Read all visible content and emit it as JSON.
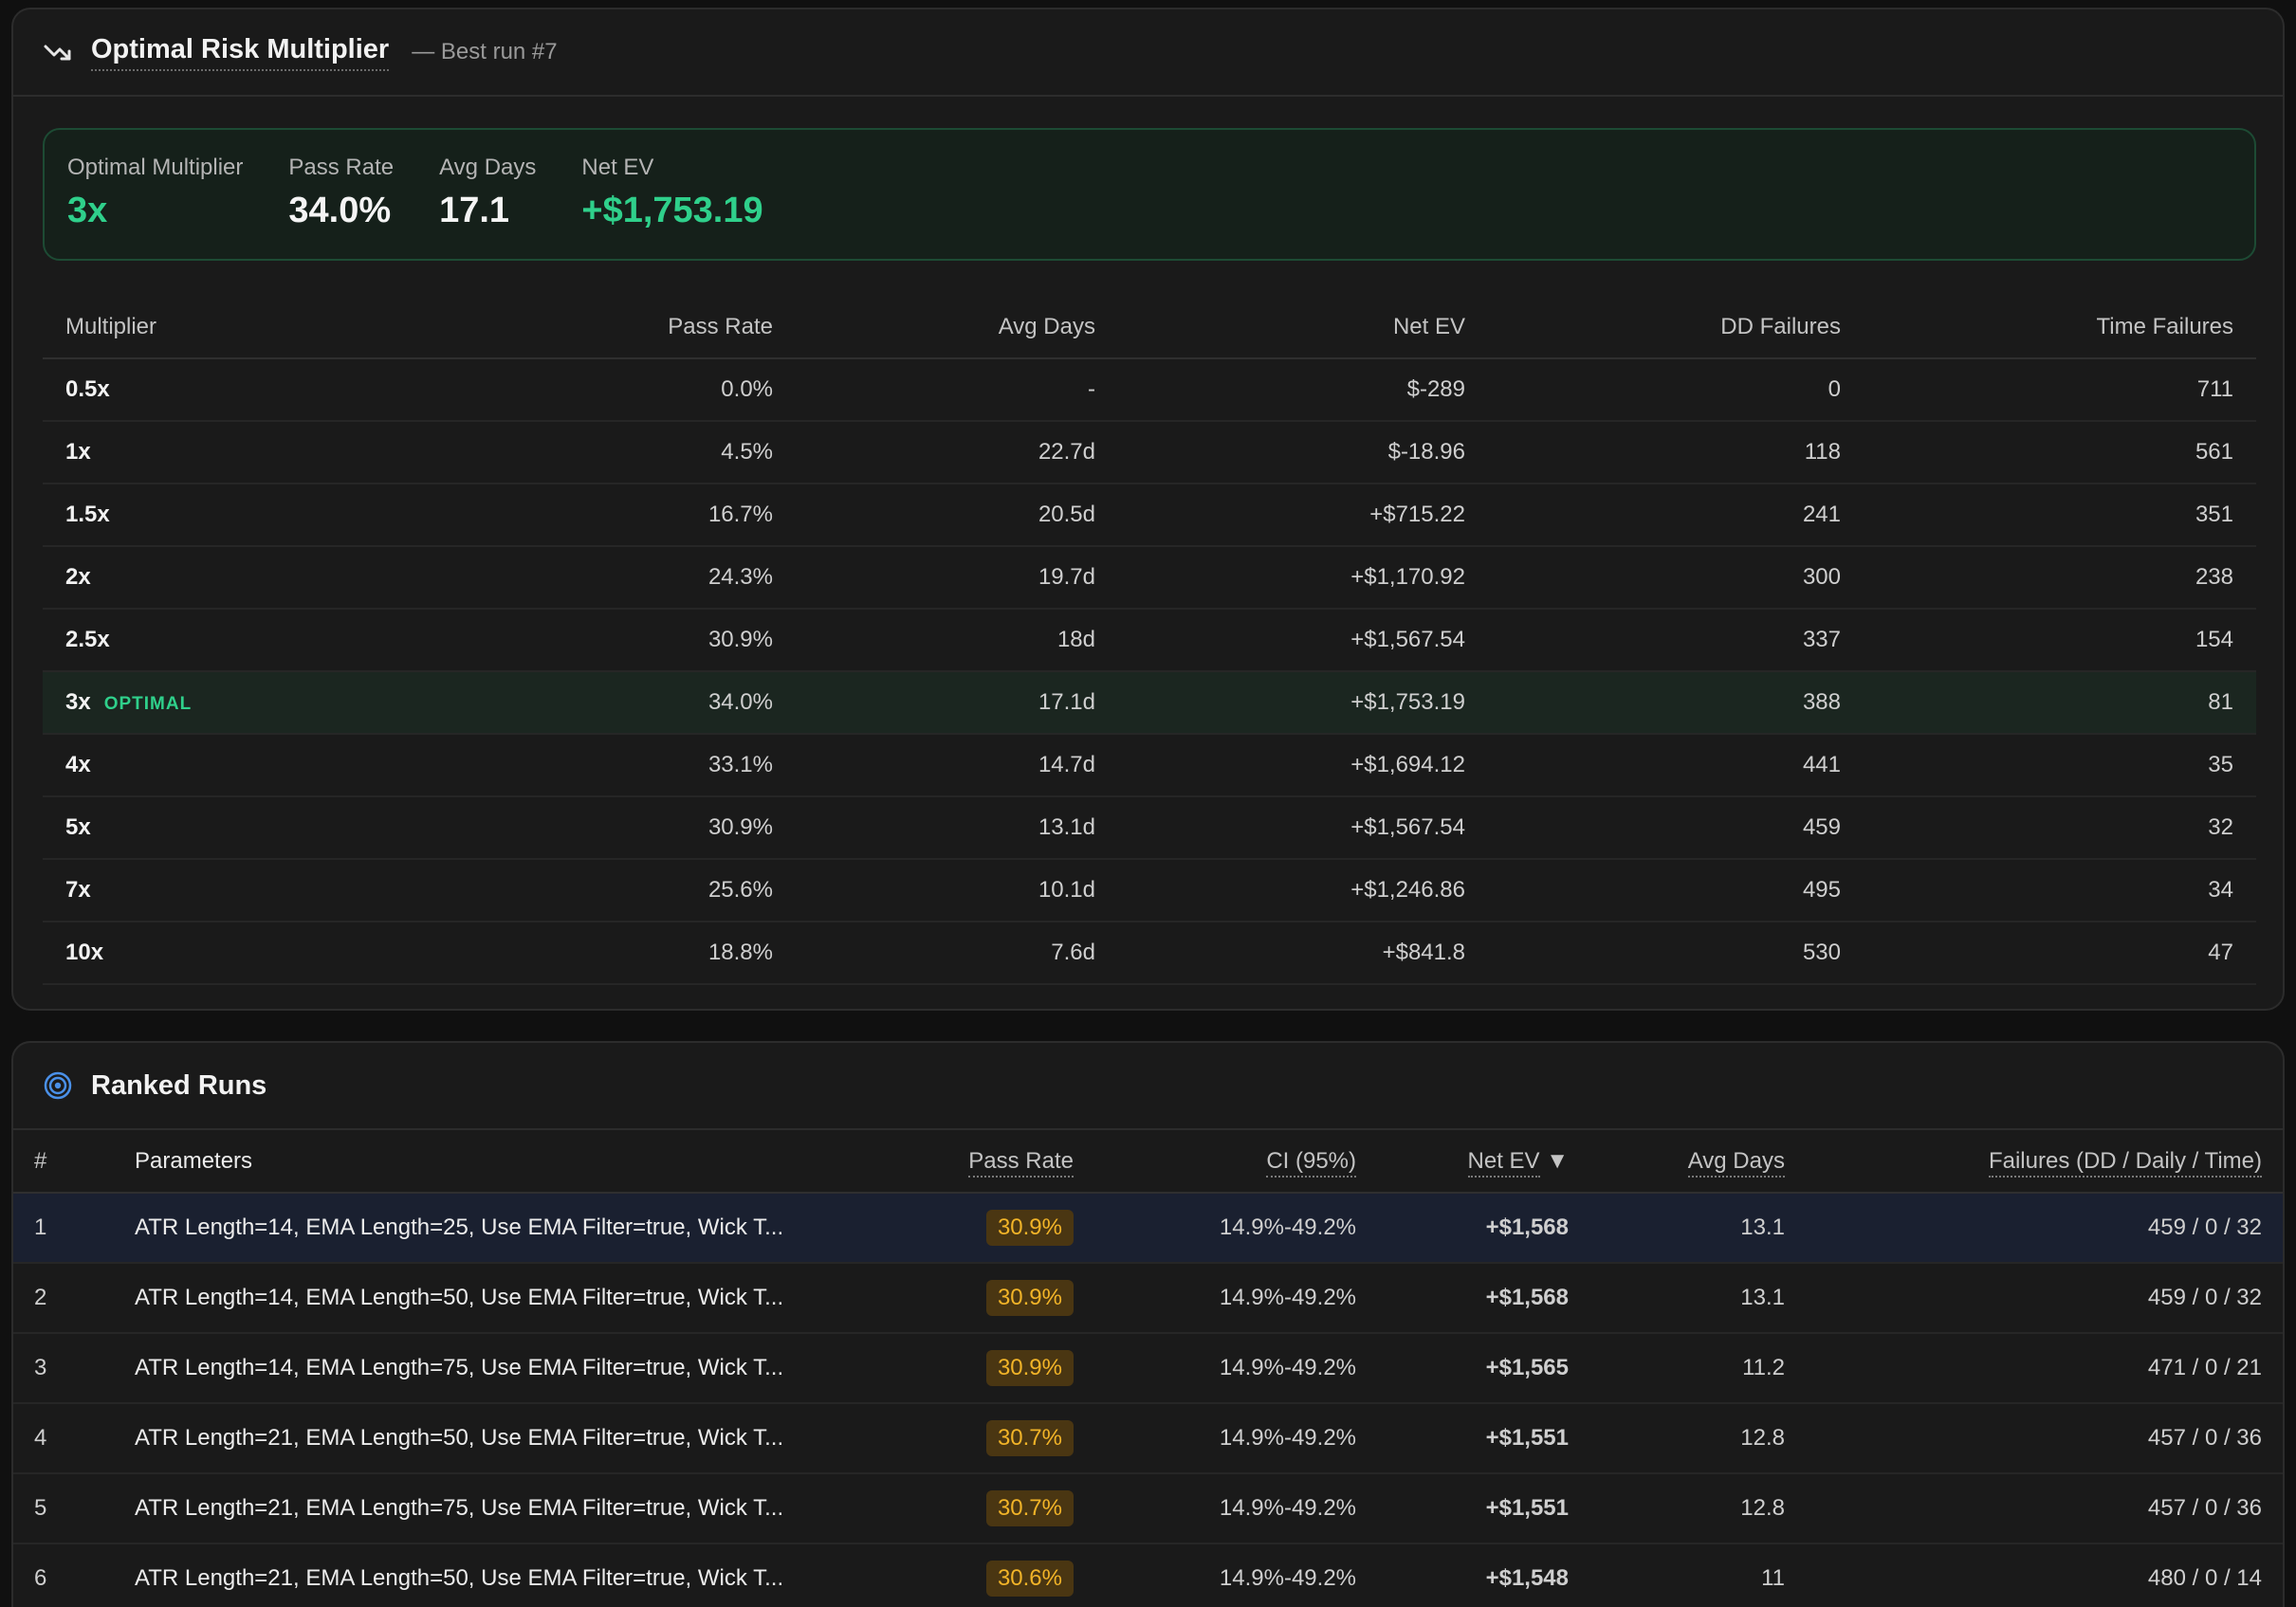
{
  "risk_panel": {
    "title": "Optimal Risk Multiplier",
    "subtitle": "— Best run #7",
    "icon": "trending-down-icon",
    "summary": {
      "optimal_label": "Optimal Multiplier",
      "optimal_value": "3x",
      "pass_label": "Pass Rate",
      "pass_value": "34.0%",
      "days_label": "Avg Days",
      "days_value": "17.1",
      "ev_label": "Net EV",
      "ev_value": "+$1,753.19"
    },
    "columns": [
      "Multiplier",
      "Pass Rate",
      "Avg Days",
      "Net EV",
      "DD Failures",
      "Time Failures"
    ],
    "optimal_badge": "OPTIMAL",
    "rows": [
      {
        "mult": "0.5x",
        "pass": "0.0%",
        "pass_color": "red",
        "days": "-",
        "ev": "$-289",
        "ev_color": "red",
        "dd": "0",
        "time": "711",
        "optimal": false
      },
      {
        "mult": "1x",
        "pass": "4.5%",
        "pass_color": "red",
        "days": "22.7d",
        "ev": "$-18.96",
        "ev_color": "red",
        "dd": "118",
        "time": "561",
        "optimal": false
      },
      {
        "mult": "1.5x",
        "pass": "16.7%",
        "pass_color": "amber",
        "days": "20.5d",
        "ev": "+$715.22",
        "ev_color": "green",
        "dd": "241",
        "time": "351",
        "optimal": false
      },
      {
        "mult": "2x",
        "pass": "24.3%",
        "pass_color": "amber",
        "days": "19.7d",
        "ev": "+$1,170.92",
        "ev_color": "green",
        "dd": "300",
        "time": "238",
        "optimal": false
      },
      {
        "mult": "2.5x",
        "pass": "30.9%",
        "pass_color": "amber",
        "days": "18d",
        "ev": "+$1,567.54",
        "ev_color": "green",
        "dd": "337",
        "time": "154",
        "optimal": false
      },
      {
        "mult": "3x",
        "pass": "34.0%",
        "pass_color": "amber",
        "days": "17.1d",
        "ev": "+$1,753.19",
        "ev_color": "green",
        "dd": "388",
        "time": "81",
        "optimal": true
      },
      {
        "mult": "4x",
        "pass": "33.1%",
        "pass_color": "amber",
        "days": "14.7d",
        "ev": "+$1,694.12",
        "ev_color": "green",
        "dd": "441",
        "time": "35",
        "optimal": false
      },
      {
        "mult": "5x",
        "pass": "30.9%",
        "pass_color": "amber",
        "days": "13.1d",
        "ev": "+$1,567.54",
        "ev_color": "green",
        "dd": "459",
        "time": "32",
        "optimal": false
      },
      {
        "mult": "7x",
        "pass": "25.6%",
        "pass_color": "amber",
        "days": "10.1d",
        "ev": "+$1,246.86",
        "ev_color": "green",
        "dd": "495",
        "time": "34",
        "optimal": false
      },
      {
        "mult": "10x",
        "pass": "18.8%",
        "pass_color": "amber",
        "days": "7.6d",
        "ev": "+$841.8",
        "ev_color": "green",
        "dd": "530",
        "time": "47",
        "optimal": false
      }
    ],
    "colors": {
      "green": "#2fd08b",
      "red": "#f36b6b",
      "amber": "#f2b428"
    }
  },
  "runs_panel": {
    "title": "Ranked Runs",
    "icon": "target-icon",
    "columns": [
      "#",
      "Parameters",
      "Pass Rate",
      "CI (95%)",
      "Net EV",
      "Avg Days",
      "Failures (DD / Daily / Time)"
    ],
    "sort_indicator": "▼",
    "rows": [
      {
        "rank": "1",
        "params": "ATR Length=14, EMA Length=25, Use EMA Filter=true, Wick T...",
        "pass": "30.9%",
        "ci": "14.9%-49.2%",
        "ev": "+$1,568",
        "days": "13.1",
        "failures": "459 / 0 / 32",
        "selected": true
      },
      {
        "rank": "2",
        "params": "ATR Length=14, EMA Length=50, Use EMA Filter=true, Wick T...",
        "pass": "30.9%",
        "ci": "14.9%-49.2%",
        "ev": "+$1,568",
        "days": "13.1",
        "failures": "459 / 0 / 32",
        "selected": false
      },
      {
        "rank": "3",
        "params": "ATR Length=14, EMA Length=75, Use EMA Filter=true, Wick T...",
        "pass": "30.9%",
        "ci": "14.9%-49.2%",
        "ev": "+$1,565",
        "days": "11.2",
        "failures": "471 / 0 / 21",
        "selected": false
      },
      {
        "rank": "4",
        "params": "ATR Length=21, EMA Length=50, Use EMA Filter=true, Wick T...",
        "pass": "30.7%",
        "ci": "14.9%-49.2%",
        "ev": "+$1,551",
        "days": "12.8",
        "failures": "457 / 0 / 36",
        "selected": false
      },
      {
        "rank": "5",
        "params": "ATR Length=21, EMA Length=75, Use EMA Filter=true, Wick T...",
        "pass": "30.7%",
        "ci": "14.9%-49.2%",
        "ev": "+$1,551",
        "days": "12.8",
        "failures": "457 / 0 / 36",
        "selected": false
      },
      {
        "rank": "6",
        "params": "ATR Length=21, EMA Length=50, Use EMA Filter=true, Wick T...",
        "pass": "30.6%",
        "ci": "14.9%-49.2%",
        "ev": "+$1,548",
        "days": "11",
        "failures": "480 / 0 / 14",
        "selected": false
      }
    ]
  }
}
